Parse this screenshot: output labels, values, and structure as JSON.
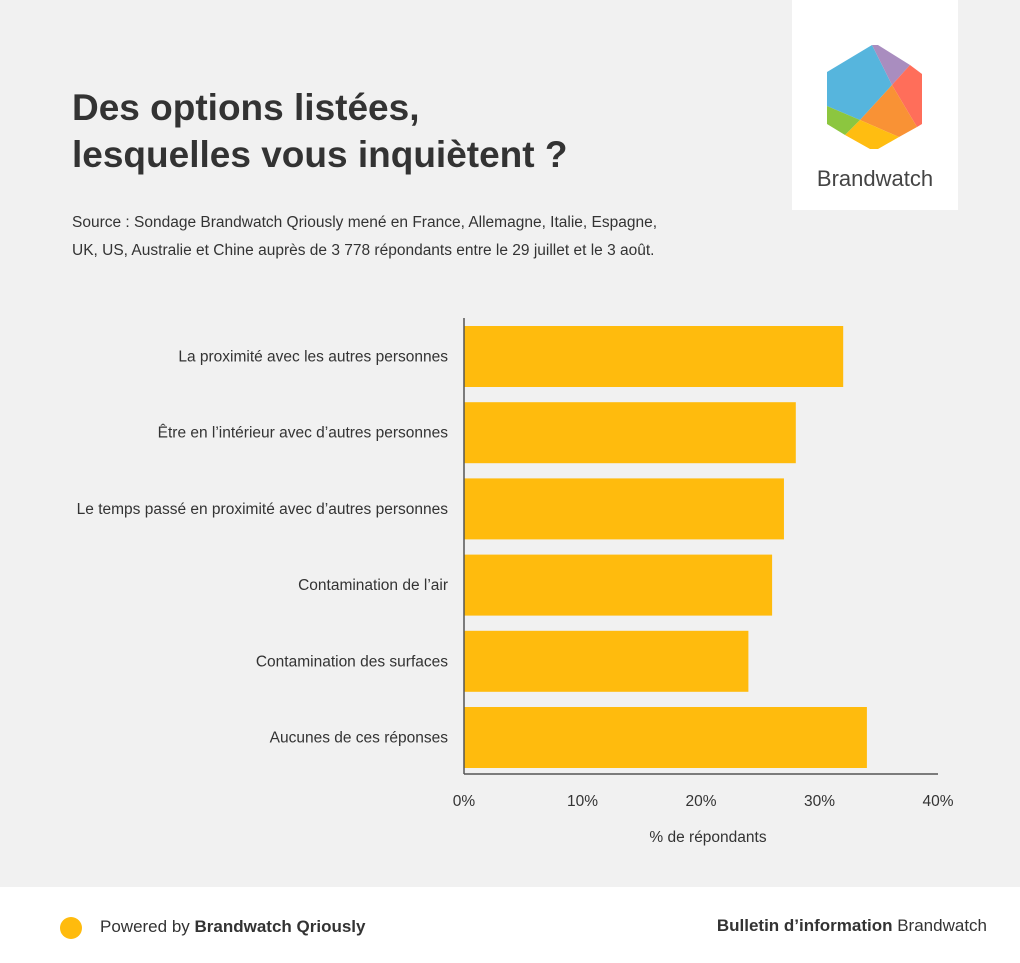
{
  "header": {
    "title_line1": "Des options listées,",
    "title_line2": "lesquelles vous inquiètent ?",
    "source_line1": "Source : Sondage Brandwatch Qriously mené en France, Allemagne, Italie, Espagne,",
    "source_line2": "UK, US, Australie et Chine auprès de 3 778 répondants entre le 29 juillet et le 3 août."
  },
  "logo": {
    "text": "Brandwatch"
  },
  "colors": {
    "bar": "#ffbb0d",
    "background": "#f1f1f1"
  },
  "chart_data": {
    "type": "bar",
    "orientation": "horizontal",
    "categories": [
      "La proximité avec les autres personnes",
      "Être en l’intérieur avec d’autres personnes",
      "Le temps passé en proximité avec d’autres personnes",
      "Contamination de l’air",
      "Contamination des surfaces",
      "Aucunes de ces réponses"
    ],
    "values": [
      32,
      28,
      27,
      26,
      24,
      34
    ],
    "xlabel": "% de répondants",
    "xlim": [
      0,
      40
    ],
    "xticks": [
      "0%",
      "10%",
      "20%",
      "30%",
      "40%"
    ],
    "grid": false
  },
  "footer": {
    "powered_prefix": "Powered by ",
    "powered_brand": "Brandwatch Qriously",
    "bulletin_bold": "Bulletin d’information",
    "bulletin_rest": " Brandwatch"
  }
}
